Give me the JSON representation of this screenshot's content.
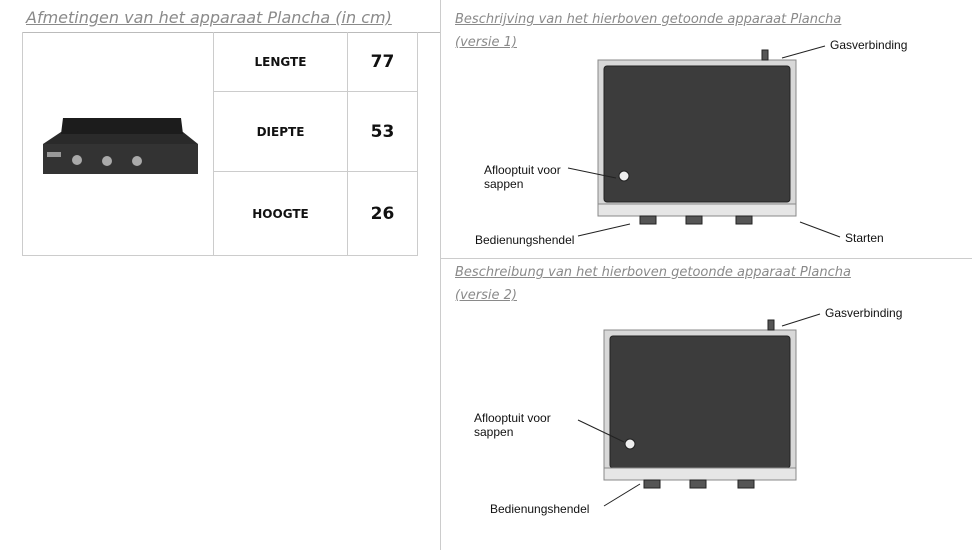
{
  "left": {
    "title": "Afmetingen van het apparaat Plancha (in cm)",
    "table": {
      "rows": [
        [
          "LENGTE",
          "77"
        ],
        [
          "DIEPTE",
          "53"
        ],
        [
          "HOOGTE",
          "26"
        ]
      ]
    }
  },
  "right": {
    "sections": [
      {
        "title": [
          "Beschrijving van het hierboven getoonde apparaat Plancha",
          "(versie 1)"
        ],
        "labels": {
          "gas": "Gasverbinding",
          "spout": [
            "Aflooptuit voor",
            "sappen"
          ],
          "handle": "Bedienungshendel",
          "start": "Starten"
        }
      },
      {
        "title": [
          "Beschreibung van het hierboven getoonde apparaat Plancha",
          "(versie 2)"
        ],
        "labels": {
          "gas": "Gasverbinding",
          "spout": [
            "Aflooptuit voor",
            "sappen"
          ],
          "handle": "Bedienungshendel"
        }
      }
    ]
  }
}
